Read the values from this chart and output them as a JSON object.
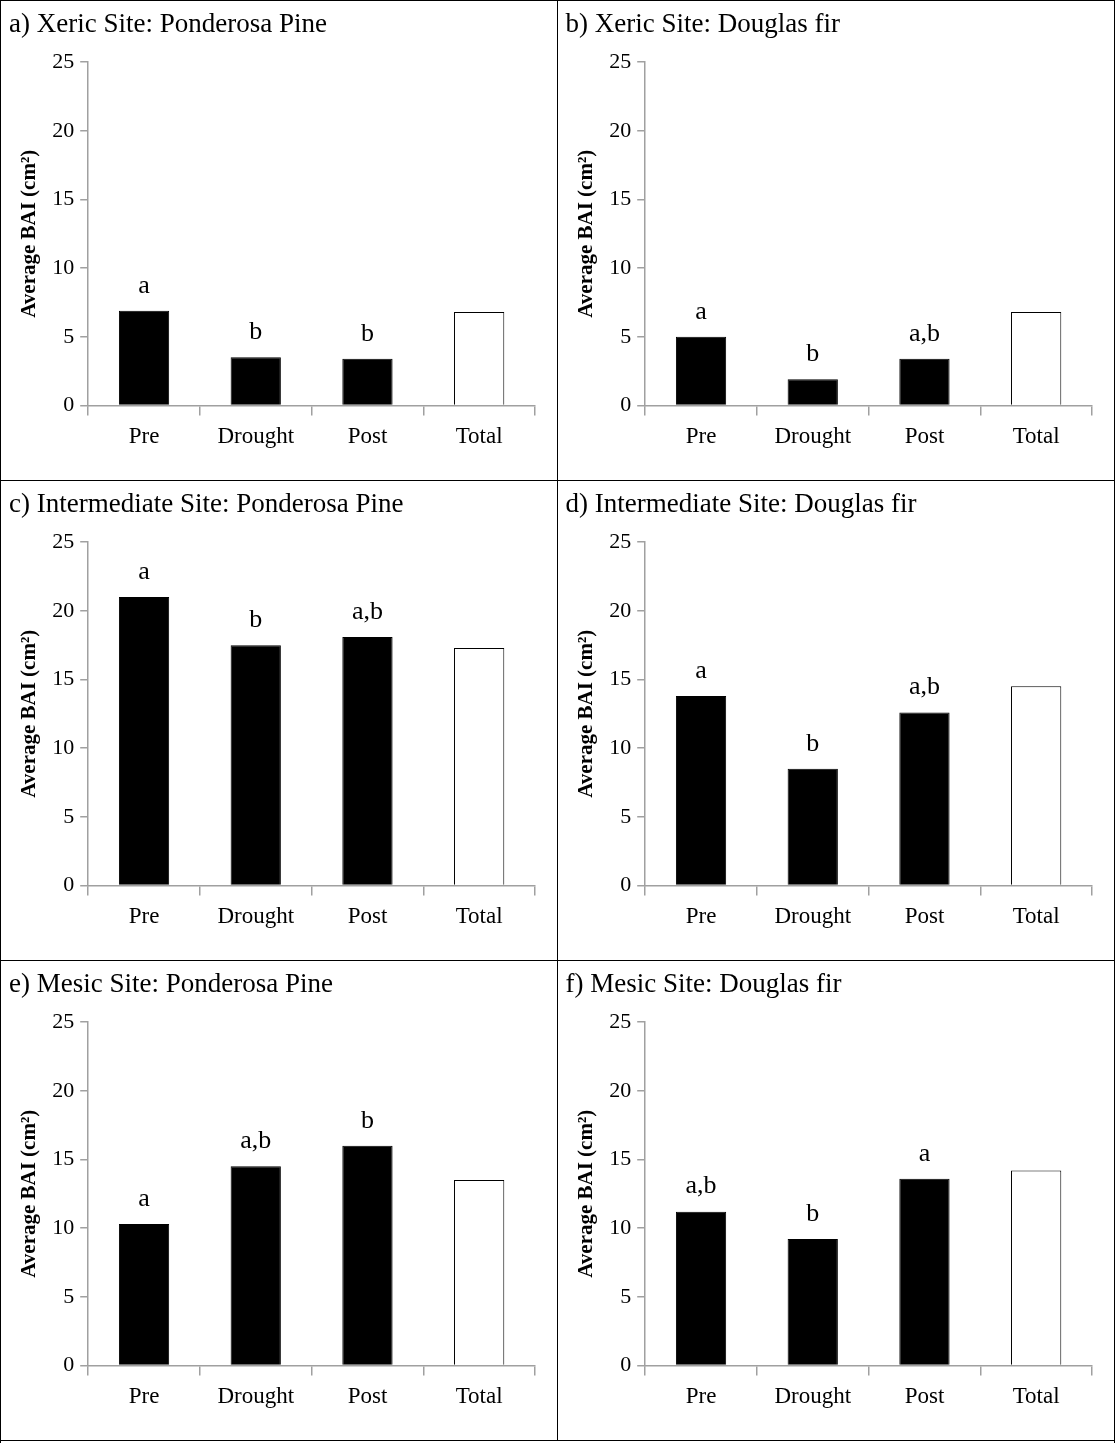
{
  "chart_data": [
    {
      "type": "bar",
      "title": "a) Xeric Site: Ponderosa Pine",
      "ylabel": "Average BAI (cm²)",
      "categories": [
        "Pre",
        "Drought",
        "Post",
        "Total"
      ],
      "values": [
        6.9,
        3.5,
        3.4,
        6.8
      ],
      "colors": [
        "#000000",
        "#000000",
        "#000000",
        "#ffffff"
      ],
      "ylim": [
        0,
        25
      ],
      "yticks": [
        0,
        5,
        10,
        15,
        20,
        25
      ],
      "grid": false,
      "legend": false,
      "annotations": [
        {
          "text": "a",
          "x": "Pre",
          "y": 6.9
        },
        {
          "text": "b",
          "x": "Drought",
          "y": 3.5
        },
        {
          "text": "b",
          "x": "Post",
          "y": 3.4
        }
      ]
    },
    {
      "type": "bar",
      "title": "b) Xeric Site: Douglas fir",
      "ylabel": "Average BAI (cm²)",
      "categories": [
        "Pre",
        "Drought",
        "Post",
        "Total"
      ],
      "values": [
        5.0,
        1.9,
        3.4,
        6.8
      ],
      "colors": [
        "#000000",
        "#000000",
        "#000000",
        "#ffffff"
      ],
      "ylim": [
        0,
        25
      ],
      "yticks": [
        0,
        5,
        10,
        15,
        20,
        25
      ],
      "grid": false,
      "legend": false,
      "annotations": [
        {
          "text": "a",
          "x": "Pre",
          "y": 5.0
        },
        {
          "text": "b",
          "x": "Drought",
          "y": 1.9
        },
        {
          "text": "a,b",
          "x": "Post",
          "y": 3.4
        }
      ]
    },
    {
      "type": "bar",
      "title": "c) Intermediate Site: Ponderosa Pine",
      "ylabel": "Average BAI (cm²)",
      "categories": [
        "Pre",
        "Drought",
        "Post",
        "Total"
      ],
      "values": [
        21.0,
        17.5,
        18.1,
        17.3
      ],
      "colors": [
        "#000000",
        "#000000",
        "#000000",
        "#ffffff"
      ],
      "ylim": [
        0,
        25
      ],
      "yticks": [
        0,
        5,
        10,
        15,
        20,
        25
      ],
      "grid": false,
      "legend": false,
      "annotations": [
        {
          "text": "a",
          "x": "Pre",
          "y": 21.0
        },
        {
          "text": "b",
          "x": "Drought",
          "y": 17.5
        },
        {
          "text": "a,b",
          "x": "Post",
          "y": 18.1
        }
      ]
    },
    {
      "type": "bar",
      "title": "d) Intermediate Site: Douglas fir",
      "ylabel": "Average BAI (cm²)",
      "categories": [
        "Pre",
        "Drought",
        "Post",
        "Total"
      ],
      "values": [
        13.8,
        8.5,
        12.6,
        14.5
      ],
      "colors": [
        "#000000",
        "#000000",
        "#000000",
        "#ffffff"
      ],
      "ylim": [
        0,
        25
      ],
      "yticks": [
        0,
        5,
        10,
        15,
        20,
        25
      ],
      "grid": false,
      "legend": false,
      "annotations": [
        {
          "text": "a",
          "x": "Pre",
          "y": 13.8
        },
        {
          "text": "b",
          "x": "Drought",
          "y": 8.5
        },
        {
          "text": "a,b",
          "x": "Post",
          "y": 12.6
        }
      ]
    },
    {
      "type": "bar",
      "title": "e) Mesic Site: Ponderosa Pine",
      "ylabel": "Average BAI (cm²)",
      "categories": [
        "Pre",
        "Drought",
        "Post",
        "Total"
      ],
      "values": [
        10.3,
        14.5,
        16.0,
        13.5
      ],
      "colors": [
        "#000000",
        "#000000",
        "#000000",
        "#ffffff"
      ],
      "ylim": [
        0,
        25
      ],
      "yticks": [
        0,
        5,
        10,
        15,
        20,
        25
      ],
      "grid": false,
      "legend": false,
      "annotations": [
        {
          "text": "a",
          "x": "Pre",
          "y": 10.3
        },
        {
          "text": "a,b",
          "x": "Drought",
          "y": 14.5
        },
        {
          "text": "b",
          "x": "Post",
          "y": 16.0
        }
      ]
    },
    {
      "type": "bar",
      "title": "f) Mesic Site: Douglas fir",
      "ylabel": "Average BAI (cm²)",
      "categories": [
        "Pre",
        "Drought",
        "Post",
        "Total"
      ],
      "values": [
        11.2,
        9.2,
        13.6,
        14.2
      ],
      "colors": [
        "#000000",
        "#000000",
        "#000000",
        "#ffffff"
      ],
      "ylim": [
        0,
        25
      ],
      "yticks": [
        0,
        5,
        10,
        15,
        20,
        25
      ],
      "grid": false,
      "legend": false,
      "annotations": [
        {
          "text": "a,b",
          "x": "Pre",
          "y": 11.2
        },
        {
          "text": "b",
          "x": "Drought",
          "y": 9.2
        },
        {
          "text": "a",
          "x": "Post",
          "y": 13.6
        }
      ]
    }
  ]
}
